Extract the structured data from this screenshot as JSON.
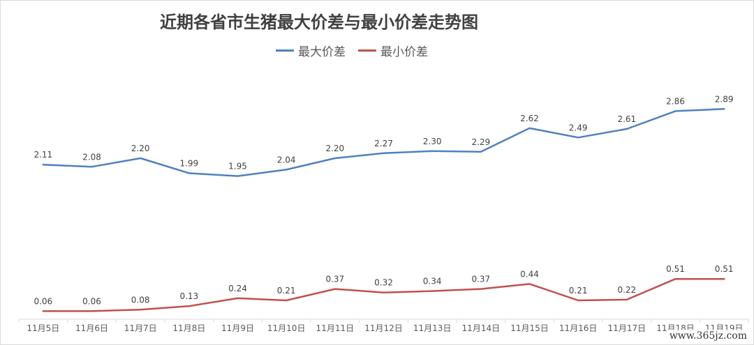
{
  "chart_data": {
    "type": "line",
    "title": "近期各省市生猪最大价差与最小价差走势图",
    "categories": [
      "11月5日",
      "11月6日",
      "11月7日",
      "11月8日",
      "11月9日",
      "11月10日",
      "11月11日",
      "11月12日",
      "11月13日",
      "11月14日",
      "11月15日",
      "11月16日",
      "11月17日",
      "11月18日",
      "11月19日"
    ],
    "series": [
      {
        "name": "最大价差",
        "color": "#4f81bd",
        "values": [
          2.11,
          2.08,
          2.2,
          1.99,
          1.95,
          2.04,
          2.2,
          2.27,
          2.3,
          2.29,
          2.62,
          2.49,
          2.61,
          2.86,
          2.89
        ],
        "labels": [
          "2.11",
          "2.08",
          "2.20",
          "1.99",
          "1.95",
          "2.04",
          "2.20",
          "2.27",
          "2.30",
          "2.29",
          "2.62",
          "2.49",
          "2.61",
          "2.86",
          "2.89"
        ]
      },
      {
        "name": "最小价差",
        "color": "#c0504d",
        "values": [
          0.06,
          0.06,
          0.08,
          0.13,
          0.24,
          0.21,
          0.37,
          0.32,
          0.34,
          0.37,
          0.44,
          0.21,
          0.22,
          0.51,
          0.51
        ],
        "labels": [
          "0.06",
          "0.06",
          "0.08",
          "0.13",
          "0.24",
          "0.21",
          "0.37",
          "0.32",
          "0.34",
          "0.37",
          "0.44",
          "0.21",
          "0.22",
          "0.51",
          "0.51"
        ]
      }
    ],
    "legend_position": "top-center",
    "grid": false
  },
  "watermark": "www.365jz.com"
}
